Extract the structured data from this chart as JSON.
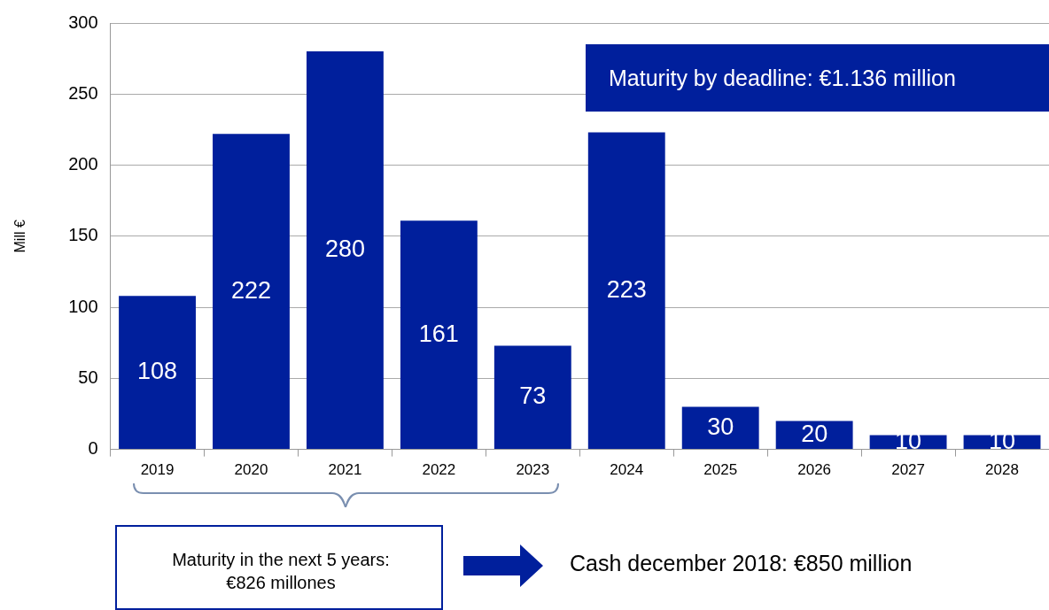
{
  "chart_data": {
    "type": "bar",
    "ylabel": "Mill €",
    "categories": [
      "2019",
      "2020",
      "2021",
      "2022",
      "2023",
      "2024",
      "2025",
      "2026",
      "2027",
      "2028"
    ],
    "values": [
      108,
      222,
      280,
      161,
      73,
      223,
      30,
      20,
      10,
      10
    ],
    "color": "#001f9c",
    "ylim": [
      0,
      300
    ],
    "yticks": [
      0,
      50,
      100,
      150,
      200,
      250,
      300
    ],
    "grid": "y",
    "legend": false,
    "data_labels": true,
    "annotations": [
      "Maturity by deadline: €1.136 million",
      "Maturity in the next 5 years: €826 millones",
      "Cash december 2018: €850 million"
    ]
  }
}
